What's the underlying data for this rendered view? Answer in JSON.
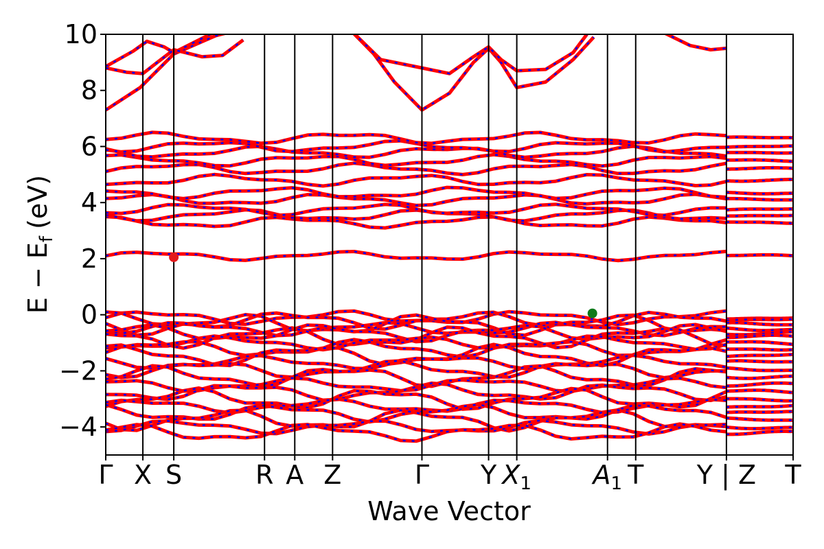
{
  "chart_data": {
    "type": "line",
    "title": "",
    "xlabel": "Wave Vector",
    "ylabel": "E − E",
    "ylabel_subscript": "f",
    "ylabel_unit": "(eV)",
    "ylim": [
      -5,
      10
    ],
    "yticks": [
      -4,
      -2,
      0,
      2,
      4,
      6,
      8,
      10
    ],
    "ytick_labels": [
      "−4",
      "−2",
      "0",
      "2",
      "4",
      "6",
      "8",
      "10"
    ],
    "xlim": [
      0,
      1
    ],
    "kpoints": [
      {
        "x": 0.0,
        "label": "Γ"
      },
      {
        "x": 0.054,
        "label": "X"
      },
      {
        "x": 0.099,
        "label": "S"
      },
      {
        "x": 0.231,
        "label": "R"
      },
      {
        "x": 0.275,
        "label": "A"
      },
      {
        "x": 0.33,
        "label": "Z"
      },
      {
        "x": 0.46,
        "label": "Γ"
      },
      {
        "x": 0.557,
        "label": "Y"
      },
      {
        "x": 0.598,
        "label": "X",
        "sub": "1"
      },
      {
        "x": 0.73,
        "label": "A",
        "sub": "1"
      },
      {
        "x": 0.771,
        "label": "T"
      },
      {
        "x": 0.903,
        "label": "Y | Z"
      },
      {
        "x": 1.0,
        "label": "T"
      }
    ],
    "highlight_points": [
      {
        "name": "CBM",
        "x": 0.099,
        "y": 2.05,
        "color": "#e41a1c"
      },
      {
        "name": "VBM",
        "x": 0.708,
        "y": 0.05,
        "color": "#0e7a1a"
      }
    ],
    "band_colors": {
      "primary": "#ff0000",
      "secondary": "#0000ff"
    },
    "conduction_bands": [
      {
        "x": [
          0,
          0.05,
          0.099,
          0.16,
          0.2
        ],
        "y": [
          7.3,
          8.1,
          9.3,
          9.95,
          10.2
        ]
      },
      {
        "x": [
          0,
          0.04,
          0.06,
          0.085,
          0.099,
          0.16
        ],
        "y": [
          8.85,
          9.4,
          9.75,
          9.55,
          9.35,
          10.1
        ]
      },
      {
        "x": [
          0,
          0.03,
          0.054,
          0.075,
          0.099,
          0.14,
          0.17,
          0.2
        ],
        "y": [
          8.8,
          8.65,
          8.6,
          9.0,
          9.45,
          9.2,
          9.25,
          9.8
        ]
      },
      {
        "x": [
          0.35,
          0.39,
          0.42,
          0.46,
          0.5,
          0.535,
          0.557,
          0.575,
          0.598,
          0.64,
          0.68,
          0.71
        ],
        "y": [
          10.3,
          9.3,
          8.3,
          7.3,
          7.9,
          9.0,
          9.5,
          9.0,
          8.1,
          8.3,
          9.1,
          9.9
        ]
      },
      {
        "x": [
          0.35,
          0.4,
          0.46,
          0.5,
          0.535,
          0.557,
          0.575,
          0.598,
          0.64,
          0.68,
          0.7
        ],
        "y": [
          10.3,
          9.1,
          8.8,
          8.6,
          9.2,
          9.55,
          9.1,
          8.7,
          8.75,
          9.35,
          10.0
        ]
      },
      {
        "x": [
          0.8,
          0.85,
          0.88,
          0.903
        ],
        "y": [
          10.2,
          9.6,
          9.45,
          9.5
        ]
      }
    ],
    "valence_band_levels": [
      -0.1,
      -0.2,
      -0.35,
      -0.5,
      -0.65,
      -0.8,
      -1.0,
      -1.2,
      -1.45,
      -1.7,
      -1.95,
      -2.2,
      -2.5,
      -2.75,
      -3.0,
      -3.25,
      -3.5,
      -3.75,
      -4.0,
      -4.2
    ],
    "upper_band_levels": [
      2.1,
      3.3,
      3.55,
      3.75,
      4.1,
      4.35,
      4.8,
      5.2,
      5.5,
      5.8,
      6.0,
      6.3
    ]
  }
}
